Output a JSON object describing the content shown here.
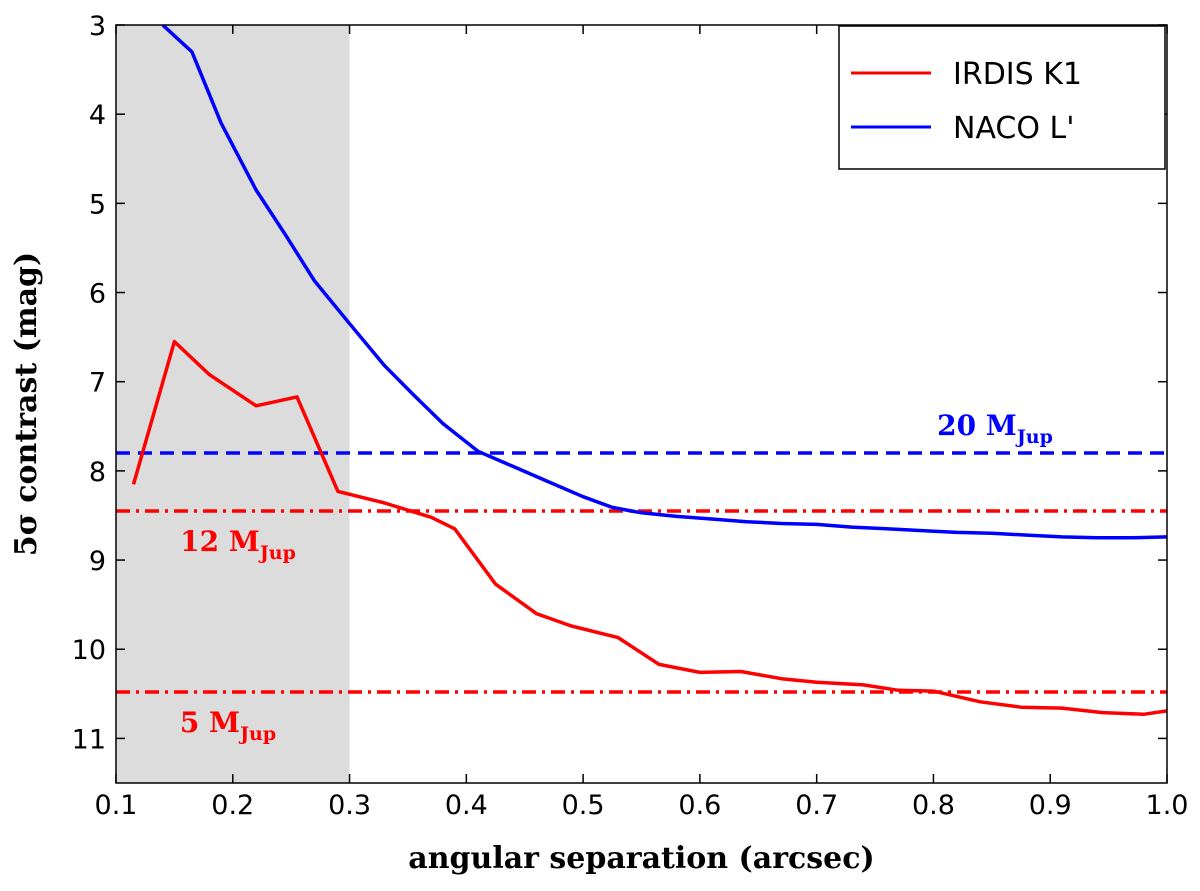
{
  "chart_data": {
    "type": "line",
    "xlabel": "angular separation (arcsec)",
    "ylabel": "5σ contrast (mag)",
    "xlim": [
      0.1,
      1.0
    ],
    "ylim": [
      11.5,
      3.0
    ],
    "y_inverted": true,
    "x_ticks": [
      0.1,
      0.2,
      0.3,
      0.4,
      0.5,
      0.6,
      0.7,
      0.8,
      0.9,
      1.0
    ],
    "x_tick_labels": [
      "0.1",
      "0.2",
      "0.3",
      "0.4",
      "0.5",
      "0.6",
      "0.7",
      "0.8",
      "0.9",
      "1.0"
    ],
    "y_ticks": [
      3,
      4,
      5,
      6,
      7,
      8,
      9,
      10,
      11
    ],
    "y_tick_labels": [
      "3",
      "4",
      "5",
      "6",
      "7",
      "8",
      "9",
      "10",
      "11"
    ],
    "shaded_region": {
      "x_from": 0.1,
      "x_to": 0.3,
      "color": "#dcdcdc"
    },
    "legend_position": "top-right",
    "series": [
      {
        "name": "IRDIS K1",
        "color": "#ff0000",
        "x": [
          0.115,
          0.15,
          0.18,
          0.22,
          0.255,
          0.29,
          0.33,
          0.37,
          0.39,
          0.425,
          0.46,
          0.49,
          0.53,
          0.565,
          0.6,
          0.635,
          0.67,
          0.7,
          0.74,
          0.77,
          0.8,
          0.84,
          0.875,
          0.91,
          0.945,
          0.98,
          1.0
        ],
        "values": [
          8.15,
          6.55,
          6.92,
          7.27,
          7.17,
          8.23,
          8.36,
          8.52,
          8.65,
          9.27,
          9.6,
          9.74,
          9.87,
          10.17,
          10.26,
          10.25,
          10.33,
          10.37,
          10.4,
          10.46,
          10.47,
          10.59,
          10.65,
          10.66,
          10.71,
          10.73,
          10.69
        ]
      },
      {
        "name": "NACO L'",
        "color": "#0000ff",
        "x": [
          0.14,
          0.165,
          0.19,
          0.22,
          0.245,
          0.27,
          0.3,
          0.33,
          0.355,
          0.38,
          0.41,
          0.44,
          0.47,
          0.5,
          0.525,
          0.55,
          0.58,
          0.61,
          0.64,
          0.67,
          0.7,
          0.73,
          0.76,
          0.79,
          0.82,
          0.85,
          0.88,
          0.91,
          0.94,
          0.97,
          1.0
        ],
        "values": [
          3.0,
          3.3,
          4.1,
          4.85,
          5.35,
          5.87,
          6.35,
          6.82,
          7.15,
          7.47,
          7.78,
          7.95,
          8.12,
          8.29,
          8.41,
          8.47,
          8.51,
          8.54,
          8.57,
          8.59,
          8.6,
          8.63,
          8.65,
          8.67,
          8.69,
          8.7,
          8.72,
          8.74,
          8.75,
          8.75,
          8.74
        ]
      }
    ],
    "reference_lines": [
      {
        "name": "12 MJup",
        "value": 8.45,
        "color": "#ff0000",
        "style": "dashdot",
        "label_main": "12 M",
        "label_sub": "Jup"
      },
      {
        "name": "5 MJup",
        "value": 10.48,
        "color": "#ff0000",
        "style": "dashdot",
        "label_main": "5 M",
        "label_sub": "Jup"
      },
      {
        "name": "20 MJup",
        "value": 7.8,
        "color": "#0000ff",
        "style": "dashed",
        "label_main": "20 M",
        "label_sub": "Jup"
      }
    ]
  }
}
